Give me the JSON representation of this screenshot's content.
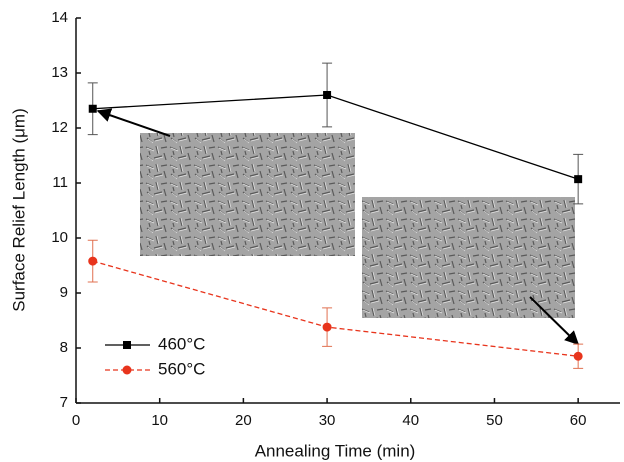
{
  "chart_data": {
    "type": "line",
    "x_label": "Annealing Time (min)",
    "y_label": "Surface Relief Length (μm)",
    "x": [
      2,
      30,
      60
    ],
    "series": [
      {
        "name": "460°C",
        "color": "#000000",
        "marker": "square",
        "dashed": false,
        "values": [
          12.35,
          12.6,
          11.07
        ],
        "errors": [
          0.47,
          0.58,
          0.45
        ]
      },
      {
        "name": "560°C",
        "color": "#e8341c",
        "marker": "circle",
        "dashed": true,
        "values": [
          9.58,
          8.38,
          7.85
        ],
        "errors": [
          0.38,
          0.35,
          0.22
        ]
      }
    ],
    "xlim": [
      0,
      65
    ],
    "xticks": [
      0,
      10,
      20,
      30,
      40,
      50,
      60
    ],
    "ylim": [
      7,
      14
    ],
    "yticks": [
      7,
      8,
      9,
      10,
      11,
      12,
      13,
      14
    ],
    "grid": false,
    "legend": "lower left"
  }
}
